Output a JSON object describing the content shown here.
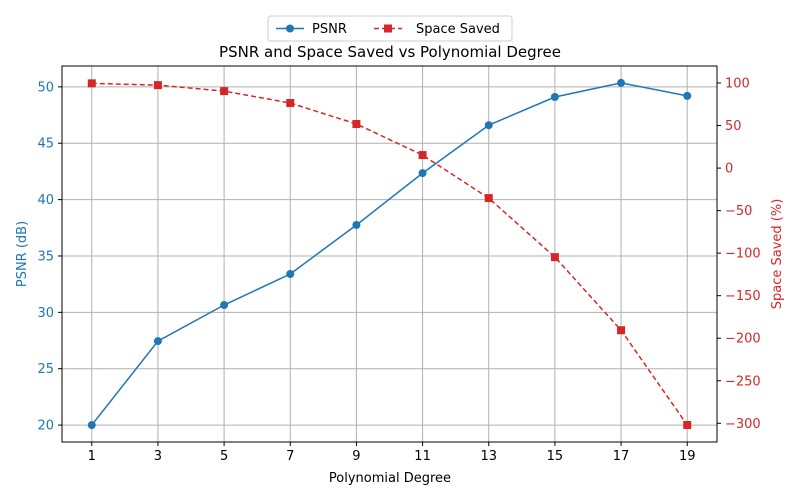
{
  "chart_data": {
    "type": "line",
    "title": "PSNR and Space Saved vs Polynomial Degree",
    "xlabel": "Polynomial Degree",
    "ylabel_left": "PSNR (dB)",
    "ylabel_right": "Space Saved (%)",
    "x": [
      1,
      3,
      5,
      7,
      9,
      11,
      13,
      15,
      17,
      19
    ],
    "xlim": [
      0.1,
      19.9
    ],
    "ylim_left": [
      18.5,
      51.85
    ],
    "ylim_right": [
      -322,
      120
    ],
    "x_ticks": [
      1,
      3,
      5,
      7,
      9,
      11,
      13,
      15,
      17,
      19
    ],
    "y_ticks_left": [
      20,
      25,
      30,
      35,
      40,
      45,
      50
    ],
    "y_ticks_right": [
      100,
      50,
      0,
      -50,
      -100,
      -150,
      -200,
      -250,
      -300
    ],
    "grid": true,
    "legend_placement": "top-center-outside",
    "series": [
      {
        "name": "PSNR",
        "axis": "left",
        "color": "#1f77b4",
        "marker": "circle",
        "linestyle": "solid",
        "values": [
          20.0,
          27.45,
          30.65,
          33.4,
          37.75,
          42.35,
          46.6,
          49.1,
          50.35,
          49.2
        ]
      },
      {
        "name": "Space Saved",
        "axis": "right",
        "color": "#d62728",
        "marker": "square",
        "linestyle": "dashed",
        "values": [
          99.6,
          97.5,
          90.5,
          76.5,
          51.8,
          15.3,
          -35.3,
          -104.7,
          -190.6,
          -302
        ]
      }
    ]
  }
}
